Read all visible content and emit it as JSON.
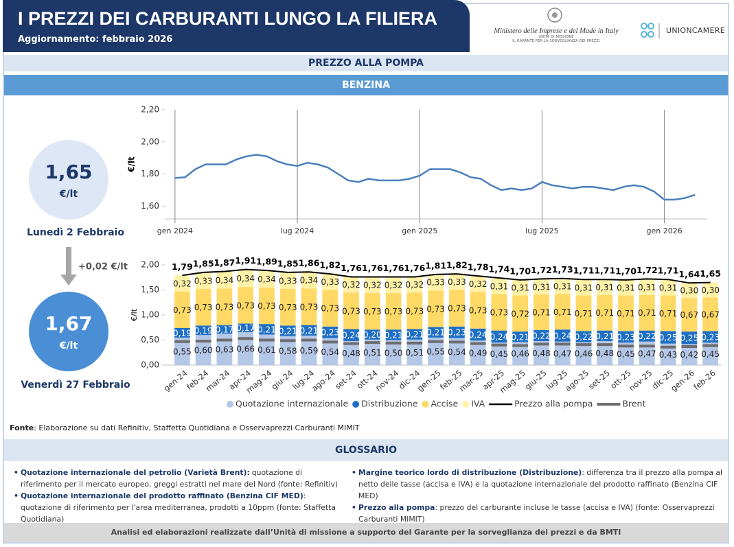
{
  "header": {
    "title": "I PREZZI DEI CARBURANTI LUNGO LA FILIERA",
    "subtitle": "Aggiornamento: febbraio 2026",
    "ministry": "Ministero delle Imprese e del Made in Italy",
    "ministry_unit": "UNITÀ DI MISSIONE",
    "ministry_office": "IL GARANTE PER LA SORVEGLIANZA DEI PREZZI",
    "partner": "UNIONCAMERE"
  },
  "section": "PREZZO ALLA POMPA",
  "fuel": "BENZINA",
  "left_panel": {
    "start": {
      "price": "1,65",
      "unit": "€/lt",
      "date": "Lunedì 2 Febbraio"
    },
    "change": "+0,02 €/lt",
    "end": {
      "price": "1,67",
      "unit": "€/lt",
      "date": "Venerdì 27 Febbraio"
    }
  },
  "chart_data": [
    {
      "type": "line",
      "y_label": "€/lt",
      "color": "#4a7ebb",
      "x": [
        0,
        0.5,
        1,
        1.5,
        2,
        2.5,
        3,
        3.5,
        4,
        4.5,
        5,
        5.5,
        6,
        6.5,
        7,
        7.5,
        8,
        8.5,
        9,
        9.5,
        10,
        10.5,
        11,
        11.5,
        12,
        12.5,
        13,
        13.5,
        14,
        14.5,
        15,
        15.5,
        16,
        16.5,
        17,
        17.5,
        18,
        18.5,
        19,
        19.5,
        20,
        20.5,
        21,
        21.5,
        22,
        22.5,
        23,
        23.5,
        24,
        24.5,
        25,
        25.5
      ],
      "values": [
        1.775,
        1.78,
        1.83,
        1.86,
        1.86,
        1.86,
        1.89,
        1.91,
        1.92,
        1.91,
        1.88,
        1.86,
        1.85,
        1.87,
        1.86,
        1.84,
        1.8,
        1.76,
        1.75,
        1.77,
        1.76,
        1.76,
        1.76,
        1.77,
        1.79,
        1.83,
        1.83,
        1.83,
        1.81,
        1.78,
        1.77,
        1.73,
        1.7,
        1.71,
        1.7,
        1.71,
        1.75,
        1.73,
        1.72,
        1.71,
        1.72,
        1.72,
        1.71,
        1.7,
        1.72,
        1.73,
        1.72,
        1.69,
        1.64,
        1.64,
        1.65,
        1.67
      ],
      "xlim": [
        -0.5,
        26.1
      ],
      "xticks": [
        {
          "value": 0,
          "label": "gen 2024"
        },
        {
          "value": 6,
          "label": "lug 2024"
        },
        {
          "value": 12,
          "label": "gen 2025"
        },
        {
          "value": 18,
          "label": "lug 2025"
        },
        {
          "value": 24,
          "label": "gen 2026"
        }
      ],
      "ylim": [
        1.52,
        2.2
      ],
      "yticks": [
        {
          "value": 1.6,
          "label": "1,60"
        },
        {
          "value": 1.8,
          "label": "1,80"
        },
        {
          "value": 2.0,
          "label": "2,00"
        },
        {
          "value": 2.2,
          "label": "2,20"
        }
      ]
    },
    {
      "type": "stacked_bar",
      "y_label": "€/lt",
      "categories": [
        "gen-24",
        "feb-24",
        "mar-24",
        "apr-24",
        "mag-24",
        "giu-24",
        "lug-24",
        "ago-24",
        "set-24",
        "ott-24",
        "nov-24",
        "dic-24",
        "gen-25",
        "feb-25",
        "mar-25",
        "apr-25",
        "mag-25",
        "giu-25",
        "lug-25",
        "ago-25",
        "set-25",
        "ott-25",
        "nov-25",
        "dic-25",
        "gen-26",
        "feb-26"
      ],
      "ylim": [
        0,
        2.0
      ],
      "yticks": [
        {
          "value": 0,
          "label": "0,00"
        },
        {
          "value": 0.5,
          "label": "0,50"
        },
        {
          "value": 1.0,
          "label": "1,00"
        },
        {
          "value": 1.5,
          "label": "1,50"
        },
        {
          "value": 2.0,
          "label": "2,00"
        }
      ],
      "series": [
        {
          "name": "Quotazione internazionale",
          "type": "bar",
          "color": "#b4c7e7",
          "label_color": "#222222",
          "values": [
            0.55,
            0.6,
            0.63,
            0.66,
            0.61,
            0.58,
            0.59,
            0.54,
            0.48,
            0.51,
            0.5,
            0.51,
            0.55,
            0.54,
            0.49,
            0.45,
            0.46,
            0.48,
            0.47,
            0.46,
            0.48,
            0.45,
            0.47,
            0.43,
            0.42,
            0.45
          ],
          "value_labels": [
            "0,55",
            "0,60",
            "0,63",
            "0,66",
            "0,61",
            "0,58",
            "0,59",
            "0,54",
            "0,48",
            "0,51",
            "0,50",
            "0,51",
            "0,55",
            "0,54",
            "0,49",
            "0,45",
            "0,46",
            "0,48",
            "0,47",
            "0,46",
            "0,48",
            "0,45",
            "0,47",
            "0,43",
            "0,42",
            "0,45"
          ]
        },
        {
          "name": "Distribuzione",
          "type": "bar",
          "color": "#1f6fc5",
          "label_color": "#ffffff",
          "values": [
            0.19,
            0.19,
            0.17,
            0.17,
            0.21,
            0.21,
            0.21,
            0.23,
            0.24,
            0.2,
            0.21,
            0.21,
            0.21,
            0.23,
            0.24,
            0.24,
            0.21,
            0.22,
            0.24,
            0.22,
            0.21,
            0.23,
            0.22,
            0.25,
            0.25,
            0.23
          ],
          "value_labels": [
            "0,19",
            "0,19",
            "0,17",
            "0,17",
            "0,21",
            "0,21",
            "0,21",
            "0,23",
            "0,24",
            "0,20",
            "0,21",
            "0,21",
            "0,21",
            "0,23",
            "0,24",
            "0,24",
            "0,21",
            "0,22",
            "0,24",
            "0,22",
            "0,21",
            "0,23",
            "0,22",
            "0,25",
            "0,25",
            "0,23"
          ]
        },
        {
          "name": "Accise",
          "type": "bar",
          "color": "#ffd966",
          "label_color": "#222222",
          "values": [
            0.73,
            0.73,
            0.73,
            0.73,
            0.73,
            0.73,
            0.73,
            0.73,
            0.73,
            0.73,
            0.73,
            0.73,
            0.73,
            0.73,
            0.73,
            0.73,
            0.72,
            0.71,
            0.71,
            0.71,
            0.71,
            0.71,
            0.71,
            0.71,
            0.67,
            0.67
          ],
          "value_labels": [
            "0,73",
            "0,73",
            "0,73",
            "0,73",
            "0,73",
            "0,73",
            "0,73",
            "0,73",
            "0,73",
            "0,73",
            "0,73",
            "0,73",
            "0,73",
            "0,73",
            "0,73",
            "0,73",
            "0,72",
            "0,71",
            "0,71",
            "0,71",
            "0,71",
            "0,71",
            "0,71",
            "0,71",
            "0,67",
            "0,67"
          ]
        },
        {
          "name": "IVA",
          "type": "bar",
          "color": "#fff2a8",
          "label_color": "#222222",
          "values": [
            0.32,
            0.33,
            0.34,
            0.34,
            0.34,
            0.33,
            0.34,
            0.33,
            0.32,
            0.32,
            0.32,
            0.32,
            0.33,
            0.33,
            0.32,
            0.31,
            0.31,
            0.31,
            0.31,
            0.31,
            0.31,
            0.31,
            0.31,
            0.31,
            0.3,
            0.3
          ],
          "value_labels": [
            "0,32",
            "0,33",
            "0,34",
            "0,34",
            "0,34",
            "0,33",
            "0,34",
            "0,33",
            "0,32",
            "0,32",
            "0,32",
            "0,32",
            "0,33",
            "0,33",
            "0,32",
            "0,31",
            "0,31",
            "0,31",
            "0,31",
            "0,31",
            "0,31",
            "0,31",
            "0,31",
            "0,31",
            "0,30",
            "0,30"
          ]
        },
        {
          "name": "Prezzo alla pompa",
          "type": "line",
          "color": "#000000",
          "values": [
            1.79,
            1.85,
            1.87,
            1.91,
            1.89,
            1.85,
            1.86,
            1.82,
            1.76,
            1.76,
            1.76,
            1.76,
            1.81,
            1.82,
            1.78,
            1.74,
            1.7,
            1.72,
            1.73,
            1.71,
            1.71,
            1.7,
            1.72,
            1.71,
            1.64,
            1.65
          ],
          "value_labels": [
            "1,79",
            "1,85",
            "1,87",
            "1,91",
            "1,89",
            "1,85",
            "1,86",
            "1,82",
            "1,76",
            "1,76",
            "1,76",
            "1,76",
            "1,81",
            "1,82",
            "1,78",
            "1,74",
            "1,70",
            "1,72",
            "1,73",
            "1,71",
            "1,71",
            "1,70",
            "1,72",
            "1,71",
            "1,64",
            "1,65"
          ]
        },
        {
          "name": "Brent",
          "type": "marker",
          "color": "#6d6d6d",
          "values": [
            0.47,
            0.48,
            0.5,
            0.53,
            0.5,
            0.49,
            0.5,
            0.46,
            0.43,
            0.45,
            0.44,
            0.44,
            0.47,
            0.46,
            0.43,
            0.4,
            0.39,
            0.42,
            0.42,
            0.41,
            0.41,
            0.38,
            0.38,
            0.36,
            0.37,
            0.39
          ]
        }
      ]
    }
  ],
  "source": {
    "label": "Fonte",
    "text": ": Elaborazione su dati Refinitiv, Staffetta Quotidiana e Osservaprezzi Carburanti MIMIT"
  },
  "glossary": {
    "title": "GLOSSARIO",
    "items": [
      {
        "term": "Quotazione internazionale del petrolio (Varietà Brent):",
        "text": "quotazione di riferimento per il mercato europeo, greggi estratti nel mare del Nord (fonte: Refinitiv)"
      },
      {
        "term": "Quotazione internazionale del prodotto raffinato (Benzina CIF MED)",
        "text": ": quotazione di riferimento per l'area mediterranea, prodotti a 10ppm (fonte: Staffetta Quotidiana)"
      },
      {
        "term": "Margine teorico lordo di distribuzione (Distribuzione)",
        "text": ": differenza tra il prezzo alla pompa al netto delle tasse (accisa e IVA) e la quotazione internazionale del prodotto raffinato (Benzina CIF MED)"
      },
      {
        "term": "Prezzo alla pompa",
        "text": ": prezzo del carburante incluse le tasse (accisa e IVA) (fonte: Osservaprezzi Carburanti MIMIT)"
      }
    ]
  },
  "footer": "Analisi ed elaborazioni realizzate dall’Unità di missione a supporto del Garante per la sorveglianza dei prezzi e da BMTI"
}
